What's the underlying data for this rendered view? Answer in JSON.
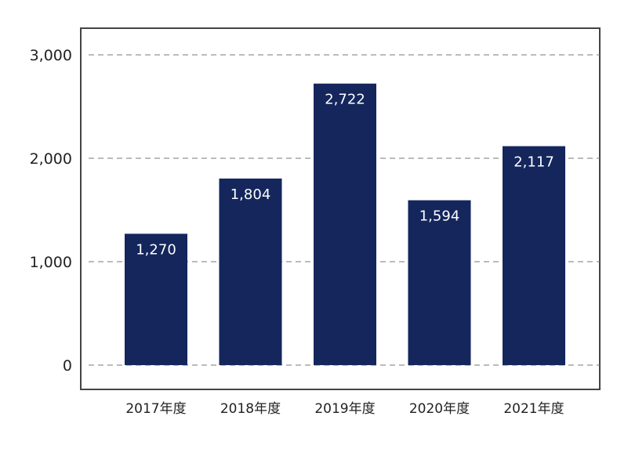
{
  "colors": {
    "bar": "#14265c",
    "frame": "#444444",
    "grid": "#777777",
    "bar_label": "#ffffff",
    "text": "#222222"
  },
  "chart_data": {
    "type": "bar",
    "categories": [
      "2017年度",
      "2018年度",
      "2019年度",
      "2020年度",
      "2021年度"
    ],
    "values": [
      1270,
      1804,
      2722,
      1594,
      2117
    ],
    "data_labels": [
      "1,270",
      "1,804",
      "2,722",
      "1,594",
      "2,117"
    ],
    "title": "",
    "xlabel": "",
    "ylabel": "",
    "ylim": [
      0,
      3000
    ],
    "yticks": [
      0,
      1000,
      2000,
      3000
    ],
    "ytick_labels": [
      "0",
      "1,000",
      "2,000",
      "3,000"
    ],
    "grid": "horizontal dashed",
    "legend": "none"
  }
}
